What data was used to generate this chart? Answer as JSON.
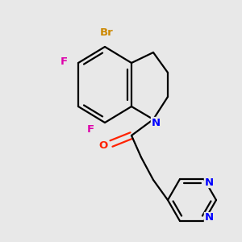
{
  "background_color": "#e8e8e8",
  "atom_colors": {
    "Br": "#cc8800",
    "F": "#dd00aa",
    "N": "#0000ff",
    "O": "#ff2200",
    "C": "#000000"
  },
  "bond_color": "#000000",
  "bond_width": 1.6,
  "figsize": [
    3.0,
    3.0
  ],
  "dpi": 100
}
